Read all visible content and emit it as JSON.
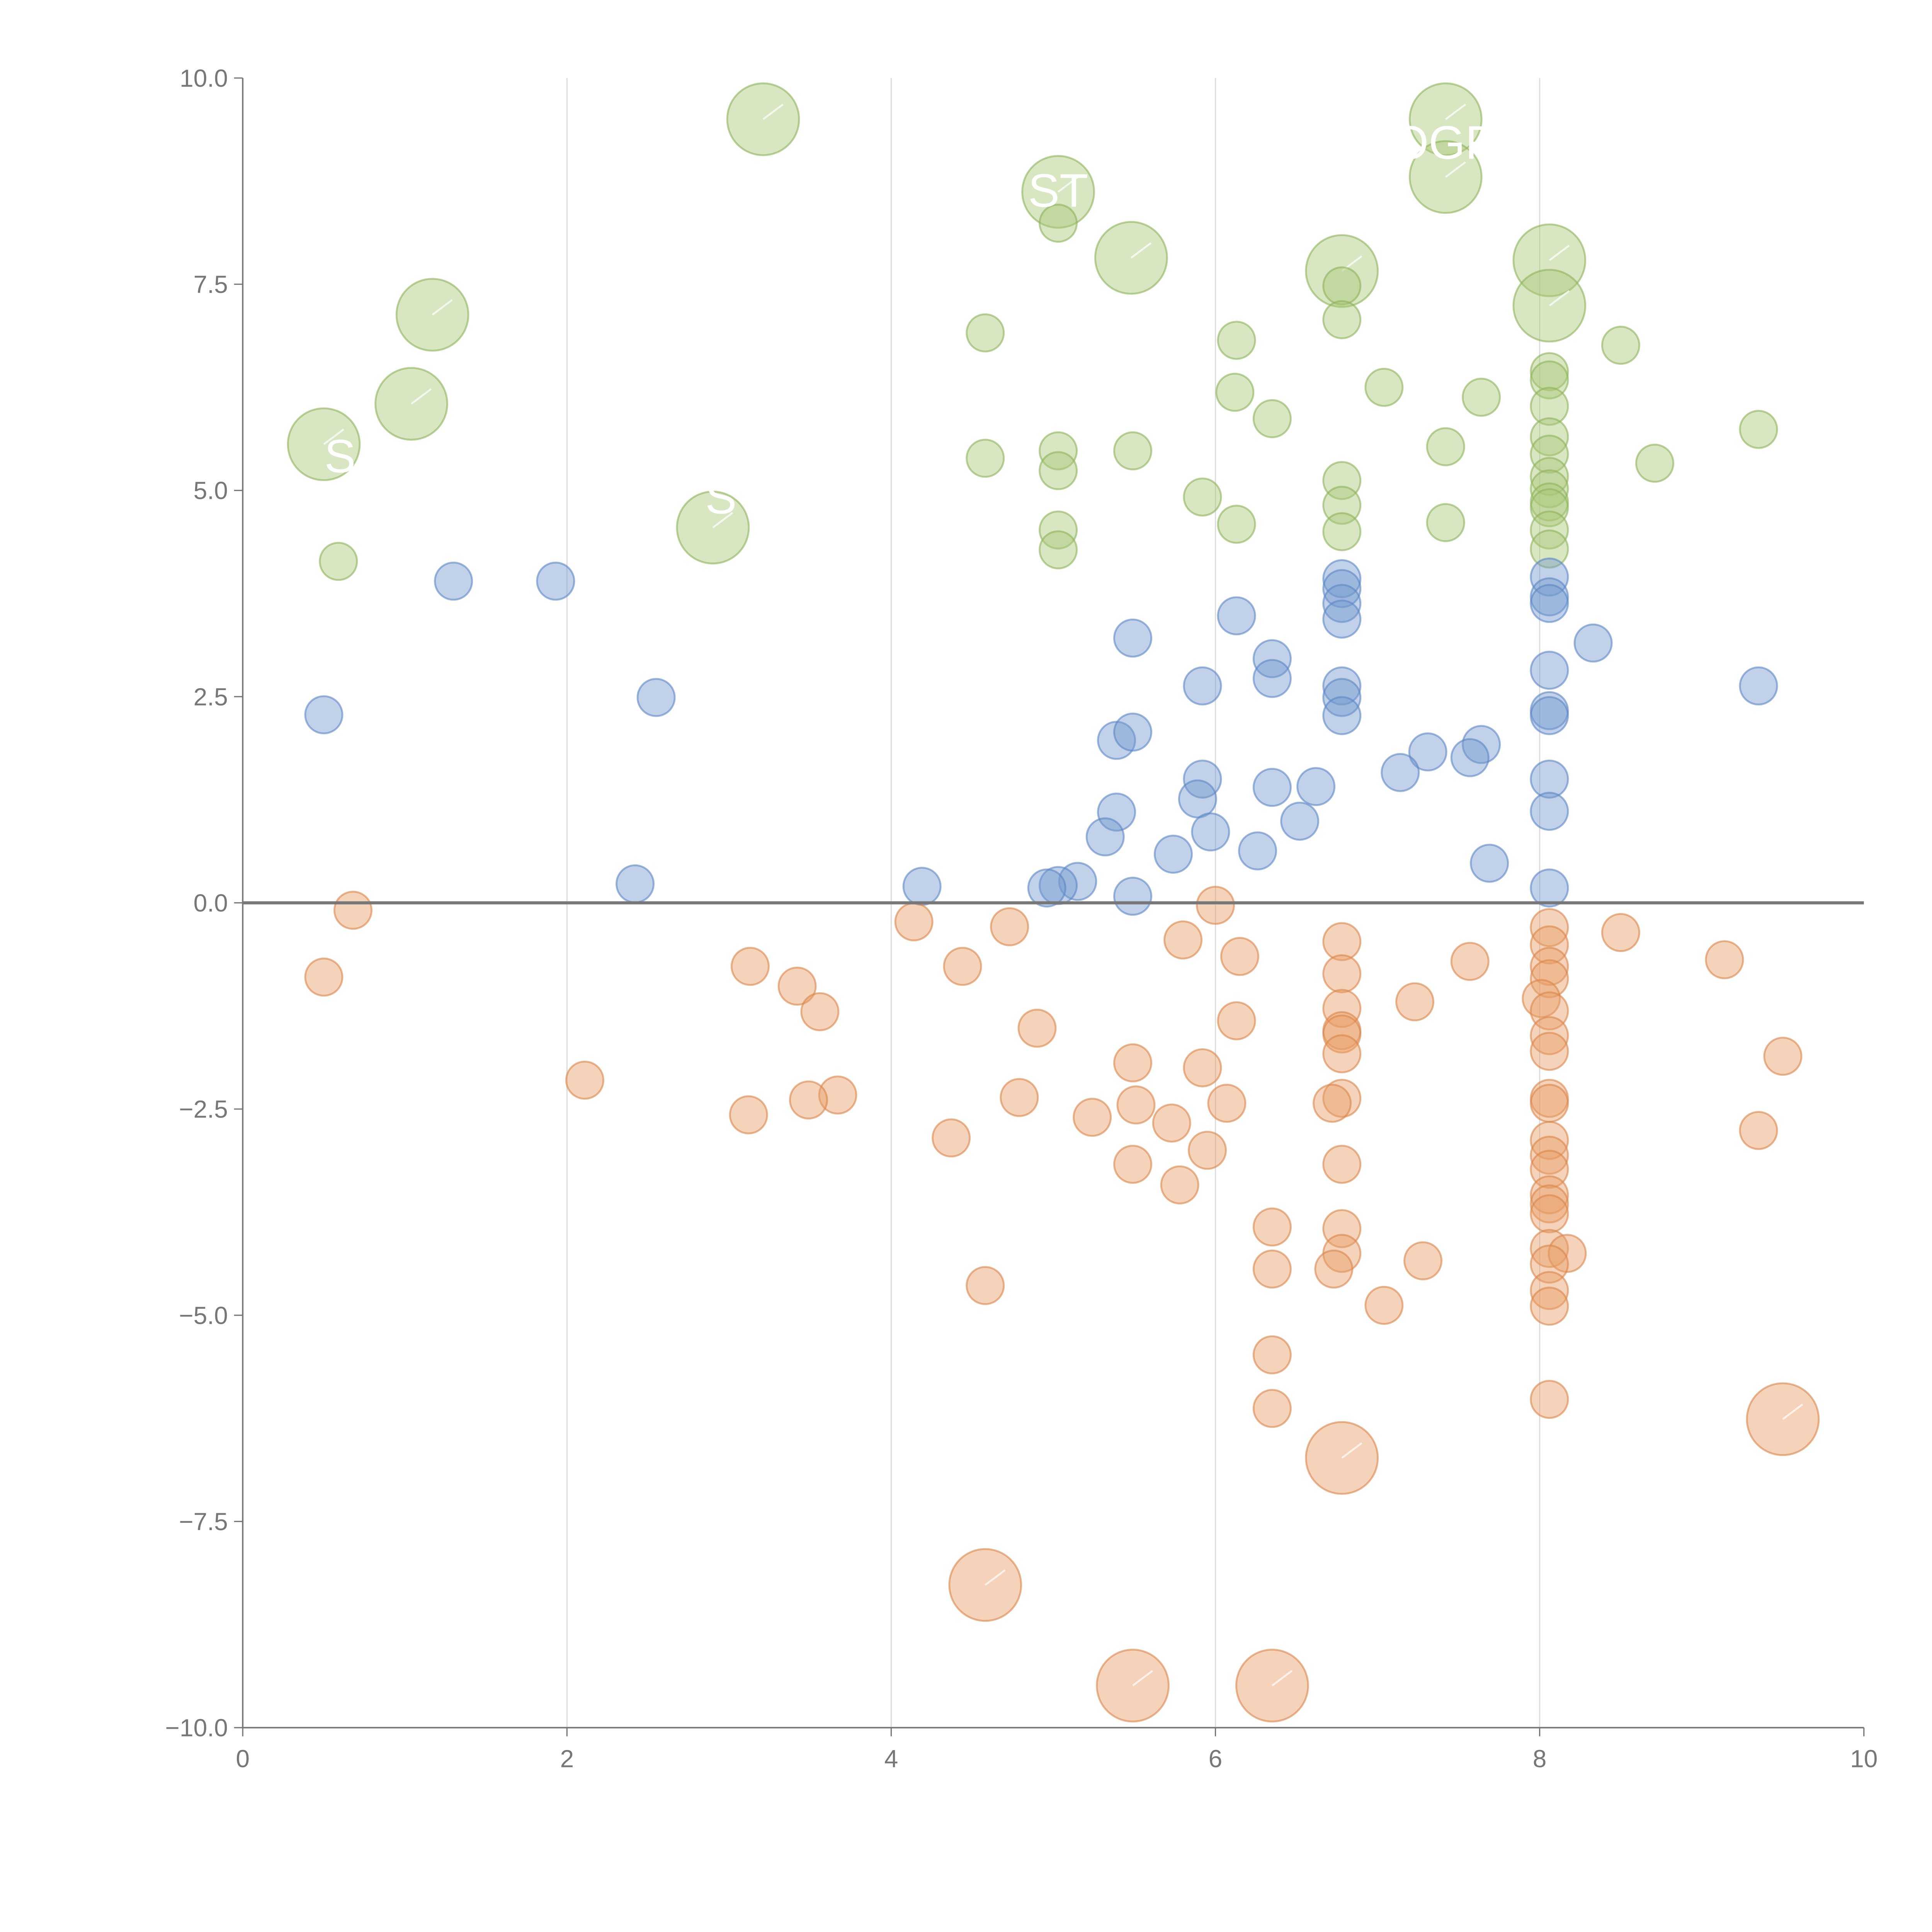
{
  "chart_data": {
    "type": "scatter",
    "title": "",
    "xlabel": "",
    "ylabel": "",
    "xlim": [
      0,
      10
    ],
    "ylim": [
      -10,
      10
    ],
    "x_ticks": [
      "0",
      "2",
      "4",
      "6",
      "8",
      "10"
    ],
    "y_ticks": [
      "10.0",
      "7.5",
      "5.0",
      "2.5",
      "0.0",
      "−2.5",
      "−5.0",
      "−7.5",
      "−10.0"
    ],
    "grid": "vertical at x=2,4,6,8",
    "reference_line_y": 0,
    "point_format": [
      "x",
      "y",
      "size"
    ],
    "series": [
      {
        "name": "green",
        "color": "#a8c878",
        "stroke": "#8db35a",
        "points": [
          [
            3.21,
            9.5,
            4
          ],
          [
            7.42,
            9.5,
            4
          ],
          [
            7.42,
            8.8,
            4
          ],
          [
            5.03,
            8.62,
            4
          ],
          [
            5.48,
            7.82,
            4
          ],
          [
            6.78,
            7.66,
            4
          ],
          [
            8.06,
            7.79,
            4
          ],
          [
            8.06,
            7.24,
            4
          ],
          [
            1.17,
            7.13,
            4
          ],
          [
            1.04,
            6.05,
            4
          ],
          [
            0.5,
            5.56,
            4
          ],
          [
            2.9,
            4.55,
            4
          ],
          [
            5.03,
            8.24,
            1
          ],
          [
            6.78,
            7.48,
            1
          ],
          [
            6.78,
            7.07,
            1
          ],
          [
            4.58,
            6.91,
            1
          ],
          [
            6.13,
            6.82,
            1
          ],
          [
            8.5,
            6.76,
            1
          ],
          [
            8.06,
            6.44,
            1
          ],
          [
            8.06,
            6.34,
            1
          ],
          [
            6.12,
            6.19,
            1
          ],
          [
            7.04,
            6.25,
            1
          ],
          [
            7.64,
            6.13,
            1
          ],
          [
            8.06,
            6.02,
            1
          ],
          [
            6.35,
            5.87,
            1
          ],
          [
            9.35,
            5.74,
            1
          ],
          [
            8.06,
            5.65,
            1
          ],
          [
            7.42,
            5.53,
            1
          ],
          [
            8.06,
            5.44,
            1
          ],
          [
            5.03,
            5.48,
            1
          ],
          [
            5.49,
            5.48,
            1
          ],
          [
            4.58,
            5.39,
            1
          ],
          [
            5.03,
            5.24,
            1
          ],
          [
            8.71,
            5.33,
            1
          ],
          [
            6.78,
            5.12,
            1
          ],
          [
            8.06,
            5.17,
            1
          ],
          [
            8.06,
            5.02,
            1
          ],
          [
            5.92,
            4.92,
            1
          ],
          [
            8.06,
            4.86,
            1
          ],
          [
            6.78,
            4.82,
            1
          ],
          [
            8.06,
            4.79,
            1
          ],
          [
            7.42,
            4.61,
            1
          ],
          [
            6.13,
            4.59,
            1
          ],
          [
            5.03,
            4.52,
            1
          ],
          [
            6.78,
            4.5,
            1
          ],
          [
            8.06,
            4.52,
            1
          ],
          [
            8.06,
            4.29,
            1
          ],
          [
            5.03,
            4.28,
            1
          ],
          [
            0.59,
            4.14,
            1
          ]
        ]
      },
      {
        "name": "blue",
        "color": "#7399cf",
        "stroke": "#5b85c4",
        "points": [
          [
            1.3,
            3.9,
            1
          ],
          [
            1.93,
            3.9,
            1
          ],
          [
            0.5,
            2.28,
            1
          ],
          [
            2.55,
            2.49,
            1
          ],
          [
            2.42,
            0.23,
            1
          ],
          [
            4.19,
            0.2,
            1
          ],
          [
            6.78,
            3.93,
            1
          ],
          [
            6.78,
            3.81,
            1
          ],
          [
            6.78,
            3.63,
            1
          ],
          [
            6.78,
            3.44,
            1
          ],
          [
            6.13,
            3.48,
            1
          ],
          [
            8.06,
            3.95,
            1
          ],
          [
            8.06,
            3.71,
            1
          ],
          [
            8.06,
            3.63,
            1
          ],
          [
            8.33,
            3.15,
            1
          ],
          [
            5.49,
            3.21,
            1
          ],
          [
            6.35,
            2.96,
            1
          ],
          [
            6.35,
            2.72,
            1
          ],
          [
            8.06,
            2.82,
            1
          ],
          [
            5.92,
            2.63,
            1
          ],
          [
            9.35,
            2.63,
            1
          ],
          [
            6.78,
            2.63,
            1
          ],
          [
            6.78,
            2.49,
            1
          ],
          [
            6.78,
            2.27,
            1
          ],
          [
            8.06,
            2.33,
            1
          ],
          [
            8.06,
            2.27,
            1
          ],
          [
            5.39,
            1.97,
            1
          ],
          [
            5.49,
            2.07,
            1
          ],
          [
            7.64,
            1.92,
            1
          ],
          [
            7.57,
            1.76,
            1
          ],
          [
            7.31,
            1.83,
            1
          ],
          [
            7.14,
            1.58,
            1
          ],
          [
            5.92,
            1.5,
            1
          ],
          [
            8.06,
            1.5,
            1
          ],
          [
            6.62,
            1.41,
            1
          ],
          [
            6.35,
            1.4,
            1
          ],
          [
            5.89,
            1.26,
            1
          ],
          [
            5.39,
            1.1,
            1
          ],
          [
            8.06,
            1.11,
            1
          ],
          [
            6.52,
            0.99,
            1
          ],
          [
            5.97,
            0.86,
            1
          ],
          [
            5.32,
            0.8,
            1
          ],
          [
            5.74,
            0.59,
            1
          ],
          [
            6.26,
            0.63,
            1
          ],
          [
            7.69,
            0.48,
            1
          ],
          [
            5.15,
            0.26,
            1
          ],
          [
            5.03,
            0.21,
            1
          ],
          [
            4.96,
            0.18,
            1
          ],
          [
            8.06,
            0.18,
            1
          ],
          [
            5.49,
            0.08,
            1
          ]
        ]
      },
      {
        "name": "orange",
        "color": "#e89d66",
        "stroke": "#d9854a",
        "points": [
          [
            0.68,
            -0.09,
            1
          ],
          [
            0.5,
            -0.9,
            1
          ],
          [
            4.14,
            -0.23,
            1
          ],
          [
            4.73,
            -0.29,
            1
          ],
          [
            6.0,
            -0.03,
            1
          ],
          [
            5.8,
            -0.45,
            1
          ],
          [
            6.78,
            -0.47,
            1
          ],
          [
            8.06,
            -0.3,
            1
          ],
          [
            8.06,
            -0.51,
            1
          ],
          [
            8.5,
            -0.36,
            1
          ],
          [
            6.15,
            -0.65,
            1
          ],
          [
            7.57,
            -0.71,
            1
          ],
          [
            9.14,
            -0.69,
            1
          ],
          [
            3.13,
            -0.77,
            1
          ],
          [
            4.44,
            -0.77,
            1
          ],
          [
            8.06,
            -0.77,
            1
          ],
          [
            8.06,
            -0.92,
            1
          ],
          [
            6.78,
            -0.86,
            1
          ],
          [
            3.42,
            -1.01,
            1
          ],
          [
            8.01,
            -1.16,
            1
          ],
          [
            7.23,
            -1.2,
            1
          ],
          [
            8.06,
            -1.31,
            1
          ],
          [
            6.78,
            -1.28,
            1
          ],
          [
            3.56,
            -1.32,
            1
          ],
          [
            6.13,
            -1.43,
            1
          ],
          [
            4.9,
            -1.52,
            1
          ],
          [
            6.78,
            -1.55,
            1
          ],
          [
            6.78,
            -1.59,
            1
          ],
          [
            8.06,
            -1.61,
            1
          ],
          [
            8.06,
            -1.8,
            1
          ],
          [
            6.78,
            -1.83,
            1
          ],
          [
            9.5,
            -1.86,
            1
          ],
          [
            5.49,
            -1.94,
            1
          ],
          [
            5.92,
            -2.0,
            1
          ],
          [
            2.11,
            -2.15,
            1
          ],
          [
            3.67,
            -2.33,
            1
          ],
          [
            4.79,
            -2.36,
            1
          ],
          [
            3.49,
            -2.39,
            1
          ],
          [
            6.78,
            -2.37,
            1
          ],
          [
            8.06,
            -2.37,
            1
          ],
          [
            8.06,
            -2.43,
            1
          ],
          [
            6.07,
            -2.43,
            1
          ],
          [
            5.51,
            -2.45,
            1
          ],
          [
            6.72,
            -2.43,
            1
          ],
          [
            3.12,
            -2.57,
            1
          ],
          [
            5.24,
            -2.6,
            1
          ],
          [
            5.73,
            -2.67,
            1
          ],
          [
            9.35,
            -2.76,
            1
          ],
          [
            4.37,
            -2.85,
            1
          ],
          [
            8.06,
            -2.88,
            1
          ],
          [
            5.95,
            -3.0,
            1
          ],
          [
            8.06,
            -3.06,
            1
          ],
          [
            5.49,
            -3.17,
            1
          ],
          [
            6.78,
            -3.17,
            1
          ],
          [
            8.06,
            -3.23,
            1
          ],
          [
            5.78,
            -3.42,
            1
          ],
          [
            8.06,
            -3.54,
            1
          ],
          [
            8.06,
            -3.65,
            1
          ],
          [
            8.06,
            -3.77,
            1
          ],
          [
            6.35,
            -3.93,
            1
          ],
          [
            6.78,
            -3.95,
            1
          ],
          [
            8.06,
            -4.19,
            1
          ],
          [
            8.17,
            -4.25,
            1
          ],
          [
            6.78,
            -4.25,
            1
          ],
          [
            7.28,
            -4.34,
            1
          ],
          [
            8.06,
            -4.38,
            1
          ],
          [
            6.35,
            -4.44,
            1
          ],
          [
            6.73,
            -4.44,
            1
          ],
          [
            4.58,
            -4.64,
            1
          ],
          [
            8.06,
            -4.7,
            1
          ],
          [
            7.04,
            -4.88,
            1
          ],
          [
            8.06,
            -4.89,
            1
          ],
          [
            6.35,
            -5.48,
            1
          ],
          [
            8.06,
            -6.02,
            1
          ],
          [
            6.35,
            -6.13,
            1
          ],
          [
            9.5,
            -6.26,
            4
          ],
          [
            6.78,
            -6.73,
            4
          ],
          [
            4.58,
            -8.27,
            4
          ],
          [
            5.49,
            -9.49,
            4
          ],
          [
            6.35,
            -9.49,
            4
          ]
        ]
      }
    ],
    "annotations": [
      {
        "text": "ST",
        "x": 5.03,
        "y": 8.62
      },
      {
        "text": "OGR",
        "x": 7.42,
        "y": 9.2
      },
      {
        "text": "S",
        "x": 0.6,
        "y": 5.4
      },
      {
        "text": "S",
        "x": 2.95,
        "y": 4.9
      }
    ]
  }
}
